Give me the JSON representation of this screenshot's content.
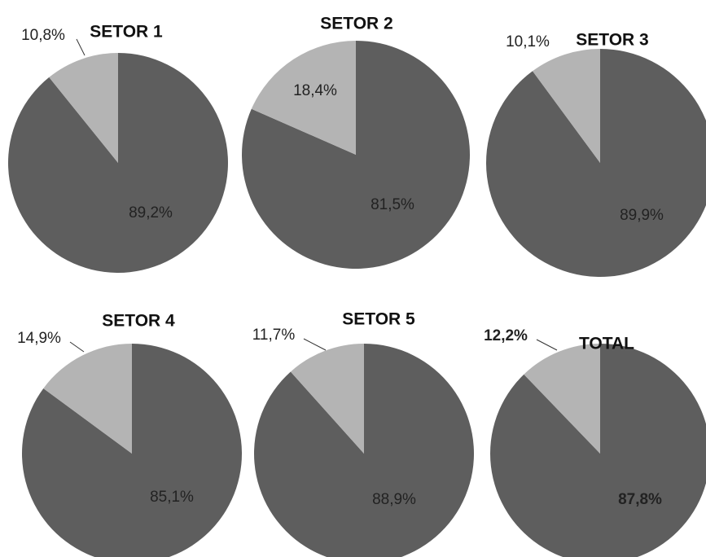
{
  "chart_data": [
    {
      "type": "pie",
      "title": "SETOR 1",
      "values": [
        10.8,
        89.2
      ],
      "value_labels": [
        "10,8%",
        "89,2%"
      ],
      "colors": [
        "#b4b4b4",
        "#5e5e5e"
      ]
    },
    {
      "type": "pie",
      "title": "SETOR 2",
      "values": [
        18.4,
        81.5
      ],
      "value_labels": [
        "18,4%",
        "81,5%"
      ],
      "colors": [
        "#b4b4b4",
        "#5e5e5e"
      ]
    },
    {
      "type": "pie",
      "title": "SETOR 3",
      "values": [
        10.1,
        89.9
      ],
      "value_labels": [
        "10,1%",
        "89,9%"
      ],
      "colors": [
        "#b4b4b4",
        "#5e5e5e"
      ]
    },
    {
      "type": "pie",
      "title": "SETOR 4",
      "values": [
        14.9,
        85.1
      ],
      "value_labels": [
        "14,9%",
        "85,1%"
      ],
      "colors": [
        "#b4b4b4",
        "#5e5e5e"
      ]
    },
    {
      "type": "pie",
      "title": "SETOR 5",
      "values": [
        11.7,
        88.9
      ],
      "value_labels": [
        "11,7%",
        "88,9%"
      ],
      "colors": [
        "#b4b4b4",
        "#5e5e5e"
      ]
    },
    {
      "type": "pie",
      "title": "TOTAL",
      "values": [
        12.2,
        87.8
      ],
      "value_labels": [
        "12,2%",
        "87,8%"
      ],
      "colors": [
        "#b4b4b4",
        "#5e5e5e"
      ]
    }
  ]
}
